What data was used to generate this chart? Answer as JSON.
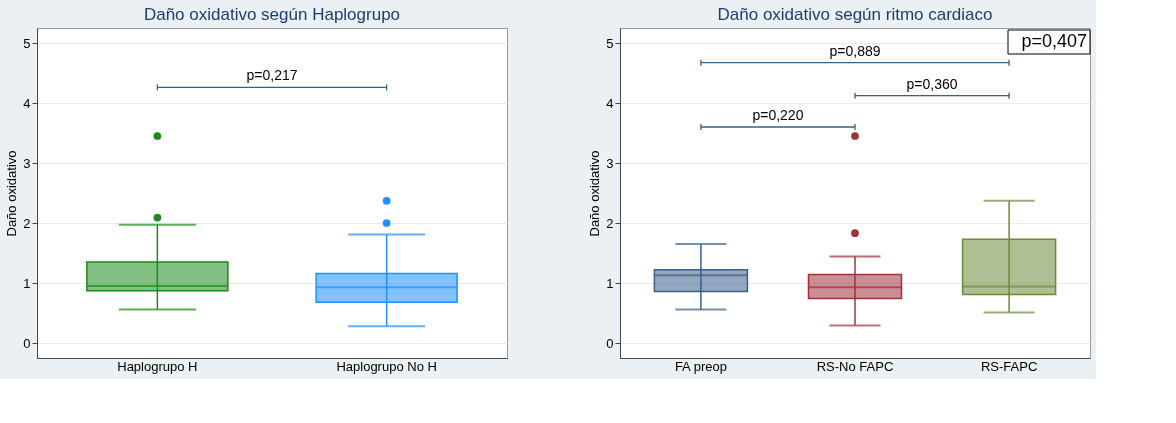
{
  "chart_data": [
    {
      "type": "box",
      "title": "Daño oxidativo según  Haplogrupo",
      "ylabel": "Daño oxidativo",
      "categories": [
        "Haplogrupo H",
        "Haplogrupo No H"
      ],
      "colors": [
        "#1a8c1a",
        "#1e90ff"
      ],
      "boxes": [
        {
          "low": 0.56,
          "q1": 0.87,
          "median": 0.95,
          "q3": 1.35,
          "high": 1.97,
          "outliers": [
            3.45,
            2.09
          ]
        },
        {
          "low": 0.28,
          "q1": 0.68,
          "median": 0.93,
          "q3": 1.16,
          "high": 1.81,
          "outliers": [
            2.37,
            2.0
          ]
        }
      ],
      "ylim": [
        -0.25,
        5.25
      ],
      "yticks": [
        0,
        1,
        2,
        3,
        4,
        5
      ],
      "grid": "y",
      "annotations": [
        "p=0,217"
      ]
    },
    {
      "type": "box",
      "title": "Daño oxidativo según ritmo cardiaco",
      "ylabel": "Daño oxidativo",
      "categories": [
        "FA preop",
        "RS-No FAPC",
        "RS-FAPC"
      ],
      "colors": [
        "#3a5f8a",
        "#a0323c",
        "#6b8a3a"
      ],
      "boxes": [
        {
          "low": 0.56,
          "q1": 0.86,
          "median": 1.13,
          "q3": 1.22,
          "high": 1.65
        },
        {
          "low": 0.29,
          "q1": 0.74,
          "median": 0.93,
          "q3": 1.14,
          "high": 1.44,
          "outliers": [
            3.45,
            1.83
          ]
        },
        {
          "low": 0.51,
          "q1": 0.81,
          "median": 0.94,
          "q3": 1.73,
          "high": 2.37
        }
      ],
      "ylim": [
        -0.25,
        5.25
      ],
      "yticks": [
        0,
        1,
        2,
        3,
        4,
        5
      ],
      "grid": "y",
      "annotations": [
        "p=0,220",
        "p=0,360",
        "p=0,889",
        "p=0,407"
      ]
    }
  ]
}
